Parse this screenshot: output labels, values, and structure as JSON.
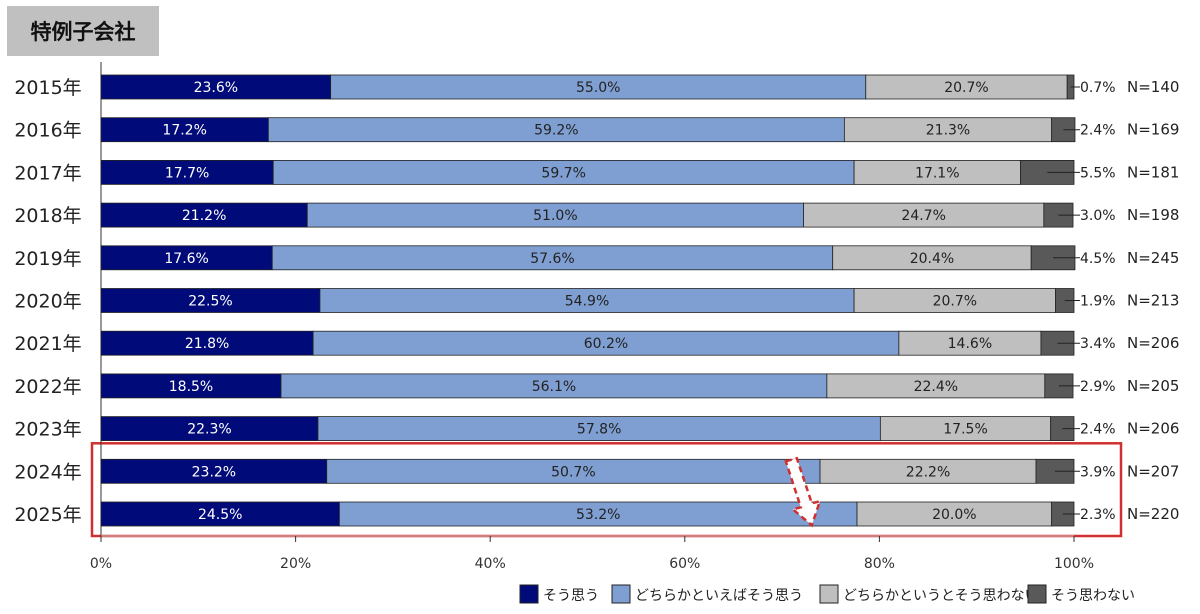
{
  "chart_data": {
    "type": "bar",
    "orientation": "horizontal",
    "stacked": true,
    "title": "特例子会社",
    "categories": [
      "2015年",
      "2016年",
      "2017年",
      "2018年",
      "2019年",
      "2020年",
      "2021年",
      "2022年",
      "2023年",
      "2024年",
      "2025年"
    ],
    "n_labels": [
      "N=140",
      "N=169",
      "N=181",
      "N=198",
      "N=245",
      "N=213",
      "N=206",
      "N=205",
      "N=206",
      "N=207",
      "N=220"
    ],
    "series": [
      {
        "name": "そう思う",
        "color": "#000a78",
        "values": [
          23.6,
          17.2,
          17.7,
          21.2,
          17.6,
          22.5,
          21.8,
          18.5,
          22.3,
          23.2,
          24.5
        ]
      },
      {
        "name": "どちらかといえばそう思う",
        "color": "#7f9fd2",
        "values": [
          55.0,
          59.2,
          59.7,
          51.0,
          57.6,
          54.9,
          60.2,
          56.1,
          57.8,
          50.7,
          53.2
        ]
      },
      {
        "name": "どちらかというとそう思わない",
        "color": "#bfbfbf",
        "values": [
          20.7,
          21.3,
          17.1,
          24.7,
          20.4,
          20.7,
          14.6,
          22.4,
          17.5,
          22.2,
          20.0
        ]
      },
      {
        "name": "そう思わない",
        "color": "#595959",
        "values": [
          0.7,
          2.4,
          5.5,
          3.0,
          4.5,
          1.9,
          3.4,
          2.9,
          2.4,
          3.9,
          2.3
        ]
      }
    ],
    "xlim": [
      0,
      100
    ],
    "x_ticks": [
      "0%",
      "20%",
      "40%",
      "60%",
      "80%",
      "100%"
    ],
    "legend_position": "bottom-right",
    "grid": false,
    "highlight": {
      "categories": [
        "2024年",
        "2025年"
      ],
      "color": "#d03030",
      "annotation": "dashed-down-arrow"
    }
  }
}
